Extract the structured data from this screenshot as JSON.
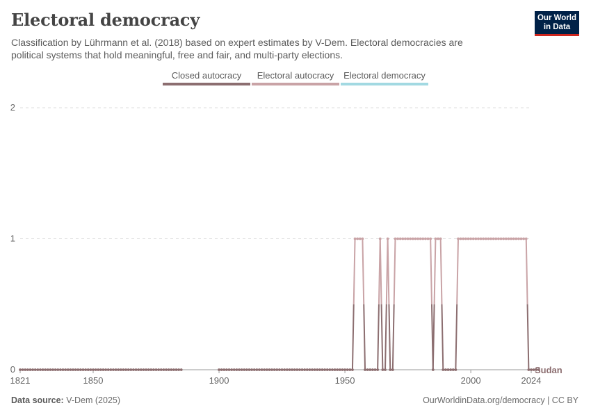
{
  "header": {
    "title": "Electoral democracy",
    "subtitle": "Classification by Lührmann et al. (2018) based on expert estimates by V-Dem. Electoral democracies are political systems that hold meaningful, free and fair, and multi-party elections."
  },
  "logo": {
    "line1": "Our World",
    "line2": "in Data"
  },
  "footer": {
    "source_label": "Data source:",
    "source_value": "V-Dem (2025)",
    "credit": "OurWorldinData.org/democracy | CC BY"
  },
  "colors": {
    "closed": "#8c6e70",
    "electoral_autocracy": "#c9a3a6",
    "electoral_democracy": "#a2d9e2",
    "grid": "#dddddd",
    "axis": "#999999"
  },
  "chart_data": {
    "type": "line",
    "title": "Electoral democracy",
    "xlabel": "",
    "ylabel": "",
    "xlim": [
      1821,
      2024
    ],
    "ylim": [
      0,
      2
    ],
    "xticks": [
      1821,
      1850,
      1900,
      1950,
      2000,
      2024
    ],
    "yticks": [
      0,
      1,
      2
    ],
    "grid": true,
    "legend_position": "top-center",
    "legend": [
      "Closed autocracy",
      "Electoral autocracy",
      "Electoral democracy"
    ],
    "series": [
      {
        "name": "Sudan",
        "segments": [
          {
            "start": 1821,
            "values": [
              0,
              0,
              0,
              0,
              0,
              0,
              0,
              0,
              0,
              0,
              0,
              0,
              0,
              0,
              0,
              0,
              0,
              0,
              0,
              0,
              0,
              0,
              0,
              0,
              0,
              0,
              0,
              0,
              0,
              0,
              0,
              0,
              0,
              0,
              0,
              0,
              0,
              0,
              0,
              0,
              0,
              0,
              0,
              0,
              0,
              0,
              0,
              0,
              0,
              0,
              0,
              0,
              0,
              0,
              0,
              0,
              0,
              0,
              0,
              0,
              0,
              0,
              0,
              0,
              0
            ]
          },
          {
            "start": 1900,
            "values": [
              0,
              0,
              0,
              0,
              0,
              0,
              0,
              0,
              0,
              0,
              0,
              0,
              0,
              0,
              0,
              0,
              0,
              0,
              0,
              0,
              0,
              0,
              0,
              0,
              0,
              0,
              0,
              0,
              0,
              0,
              0,
              0,
              0,
              0,
              0,
              0,
              0,
              0,
              0,
              0,
              0,
              0,
              0,
              0,
              0,
              0,
              0,
              0,
              0,
              0,
              0,
              0,
              0,
              0,
              1,
              1,
              1,
              1,
              0,
              0,
              0,
              0,
              0,
              0,
              1,
              0,
              0,
              1,
              0,
              0,
              1,
              1,
              1,
              1,
              1,
              1,
              1,
              1,
              1,
              1,
              1,
              1,
              1,
              1,
              1,
              0,
              1,
              1,
              1,
              0,
              0,
              0,
              0,
              0,
              0,
              1,
              1,
              1,
              1,
              1,
              1,
              1,
              1,
              1,
              1,
              1,
              1,
              1,
              1,
              1,
              1,
              1,
              1,
              1,
              1,
              1,
              1,
              1,
              1,
              1,
              1,
              1,
              1,
              0,
              0,
              0,
              0,
              0
            ]
          }
        ]
      }
    ],
    "series_label": "Sudan"
  }
}
